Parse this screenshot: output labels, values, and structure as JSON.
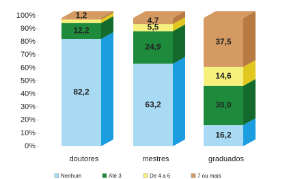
{
  "chart_data": {
    "type": "stacked-bar-3d",
    "categories": [
      "doutores",
      "mestres",
      "graduados"
    ],
    "series": [
      {
        "name": "Nenhum",
        "color": "#a9daf3",
        "side": "#1b9de0",
        "values": [
          82.2,
          63.2,
          16.2
        ],
        "value_labels": [
          "82,2",
          "63,2",
          "16,2"
        ]
      },
      {
        "name": "Até 3",
        "color": "#1e8b3c",
        "side": "#146a2c",
        "values": [
          12.2,
          24.9,
          30.0
        ],
        "value_labels": [
          "12,2",
          "24,9",
          "30,0"
        ]
      },
      {
        "name": "De 4 a 6",
        "color": "#f6f07c",
        "side": "#e0c820",
        "values": [
          2.7,
          5.5,
          14.6
        ],
        "value_labels": [
          null,
          "5,5",
          "14,6"
        ]
      },
      {
        "name": "7 ou mais",
        "color": "#d49a62",
        "side": "#b87a42",
        "values": [
          1.2,
          4.7,
          37.5
        ],
        "value_labels": [
          "1,2",
          "4,7",
          "37,5"
        ]
      }
    ],
    "ylim": [
      0,
      100
    ],
    "yticks": [
      {
        "value": 0,
        "label": "0%"
      },
      {
        "value": 10,
        "label": "10%"
      },
      {
        "value": 20,
        "label": "20%"
      },
      {
        "value": 30,
        "label": "30%"
      },
      {
        "value": 40,
        "label": "40%"
      },
      {
        "value": 50,
        "label": "50%"
      },
      {
        "value": 60,
        "label": "60%"
      },
      {
        "value": 70,
        "label": "70%"
      },
      {
        "value": 80,
        "label": "80%"
      },
      {
        "value": 90,
        "label": "90%"
      },
      {
        "value": 100,
        "label": "100%"
      }
    ]
  }
}
